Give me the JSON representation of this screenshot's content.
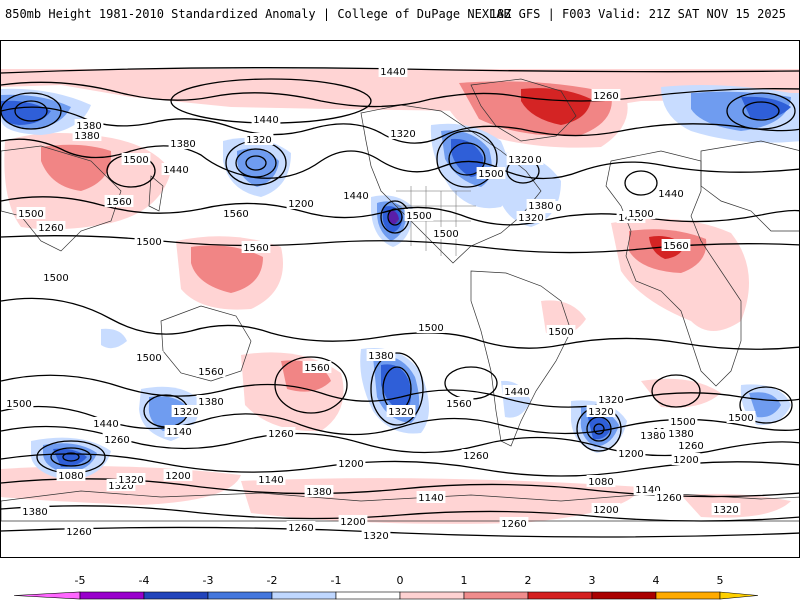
{
  "header": {
    "left_title": "850mb Height 1981-2010 Standardized Anomaly | College of DuPage NEXLAB",
    "right_title": "18Z GFS | F003 Valid: 21Z SAT NOV 15 2025"
  },
  "map": {
    "contour_labels": [
      "1440",
      "1440",
      "1260",
      "1380",
      "1380",
      "1320",
      "1320",
      "1500",
      "1500",
      "1380",
      "1440",
      "1500",
      "1560",
      "1500",
      "1320",
      "1380",
      "1320",
      "1200",
      "1560",
      "1560",
      "1500",
      "1440",
      "1380",
      "1440",
      "1260",
      "1500",
      "1500",
      "1500",
      "1560",
      "1500",
      "1500",
      "1440",
      "1500",
      "1560",
      "1500",
      "1560",
      "1440",
      "1320",
      "1320",
      "1380",
      "1380",
      "1500",
      "1560",
      "1440",
      "1260",
      "1080",
      "1140",
      "1200",
      "1200",
      "1260",
      "1320",
      "1380",
      "1260",
      "1320",
      "1380",
      "1260",
      "1200",
      "1140",
      "1140",
      "1080",
      "1140",
      "1200",
      "1260",
      "1380",
      "1500",
      "1260",
      "1320",
      "1320",
      "1200",
      "1260",
      "1320",
      "1140",
      "1500",
      "1320",
      "1380",
      "1200",
      "1260"
    ]
  },
  "colorbar": {
    "ticks": [
      "-5",
      "-4",
      "-3",
      "-2",
      "-1",
      "0",
      "1",
      "2",
      "3",
      "4",
      "5"
    ],
    "colors": [
      "#ff66ff",
      "#9900cc",
      "#2244bb",
      "#4477dd",
      "#bfd7ff",
      "#ffffff",
      "#ffd2d2",
      "#f08c8c",
      "#d42020",
      "#aa0000",
      "#ffaa00",
      "#ffd000"
    ]
  },
  "colors": {
    "neg1": "#c8dcff",
    "neg2": "#6f9cf0",
    "neg3": "#2f5fd8",
    "neg4": "#5a1ea8",
    "pos1": "#ffd4d4",
    "pos2": "#f18585",
    "pos3": "#d42424"
  }
}
